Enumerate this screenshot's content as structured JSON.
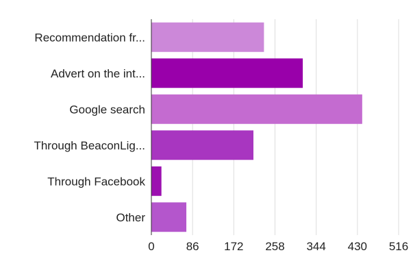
{
  "chart_data": {
    "type": "bar",
    "orientation": "horizontal",
    "title": "",
    "xlabel": "",
    "ylabel": "",
    "categories": [
      "Recommendation fr...",
      "Advert on the int...",
      "Google search",
      "Through BeaconLig...",
      "Through Facebook",
      "Other"
    ],
    "values": [
      235,
      316,
      440,
      213,
      21,
      73
    ],
    "bar_colors": [
      "#cc88d9",
      "#9900aa",
      "#c46bd0",
      "#a836c0",
      "#9c10b0",
      "#b456cc"
    ],
    "xlim": [
      0,
      516
    ],
    "xticks": [
      0,
      86,
      172,
      258,
      344,
      430,
      516
    ],
    "grid": "vertical"
  }
}
